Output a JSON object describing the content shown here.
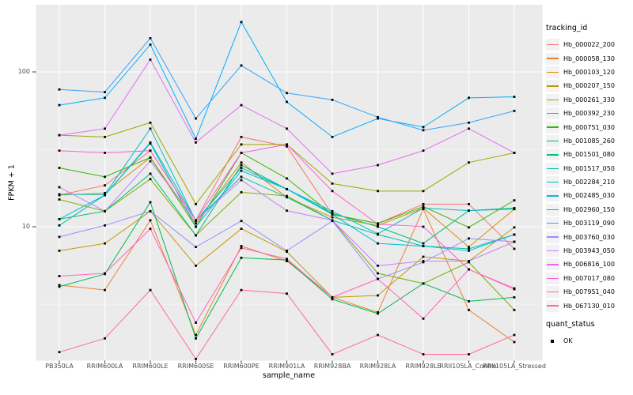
{
  "figure": {
    "panel_bg": "#EBEBEB",
    "grid_color": "#FFFFFF",
    "tick_color": "#333333",
    "tick_label_color": "#4D4D4D",
    "point_color": "#000000"
  },
  "chart_data": {
    "type": "line",
    "title": "",
    "xlabel": "sample_name",
    "ylabel": "FPKM + 1",
    "y_scale": "log10",
    "ylim": [
      1.35,
      280
    ],
    "grid": true,
    "legend_position": "right",
    "legend_title": "tracking_id",
    "quant_legend_title": "quant_status",
    "quant_status": {
      "label": "OK",
      "marker": "black-square"
    },
    "y_ticks": [
      {
        "label": "100",
        "value": 100
      },
      {
        "label": "10",
        "value": 10
      }
    ],
    "y_minor": [
      3.162,
      31.62
    ],
    "categories": [
      "PB350LA",
      "RRIM600LA",
      "RRIM600LE",
      "RRIM600SE",
      "RRIM600PE",
      "RRIM901LA",
      "RRIM928BA",
      "RRIM928LA",
      "RRIM928LE",
      "RRII105LA_Control",
      "RRII105LA_Stressed"
    ],
    "series": [
      {
        "name": "Hb_000022_200",
        "color": "#F8766D",
        "values": [
          16,
          18.5,
          31,
          11,
          38,
          33,
          12,
          10.5,
          14,
          14,
          7.2
        ]
      },
      {
        "name": "Hb_000058_130",
        "color": "#EA8331",
        "values": [
          4.2,
          3.9,
          11,
          2.0,
          7.5,
          6.0,
          3.5,
          2.8,
          13,
          2.9,
          1.8
        ]
      },
      {
        "name": "Hb_000103_120",
        "color": "#D89000",
        "values": [
          16,
          16.5,
          28,
          10.5,
          26,
          15.5,
          11.5,
          10.2,
          13.2,
          7.4,
          13
        ]
      },
      {
        "name": "Hb_000207_150",
        "color": "#C09B00",
        "values": [
          7.0,
          7.8,
          12.6,
          5.6,
          9.7,
          6.9,
          3.5,
          3.6,
          6.4,
          6.0,
          9.9
        ]
      },
      {
        "name": "Hb_000261_330",
        "color": "#A3A500",
        "values": [
          39,
          38,
          47,
          14,
          34,
          34,
          19,
          17,
          17,
          26,
          30
        ]
      },
      {
        "name": "Hb_000392_230",
        "color": "#7CAE00",
        "values": [
          15,
          12.6,
          20.3,
          8.8,
          16.7,
          15.8,
          11,
          5.0,
          4.3,
          5.9,
          2.9
        ]
      },
      {
        "name": "Hb_000751_030",
        "color": "#39B600",
        "values": [
          24,
          21,
          28,
          10,
          30,
          20.5,
          12,
          10.5,
          13.5,
          9.9,
          14.8
        ]
      },
      {
        "name": "Hb_001085_260",
        "color": "#00BB4E",
        "values": [
          4.1,
          4.95,
          14.4,
          1.9,
          6.3,
          6.1,
          3.4,
          2.75,
          4.3,
          3.3,
          3.5
        ]
      },
      {
        "name": "Hb_001501_080",
        "color": "#00BF7D",
        "values": [
          11.2,
          12.6,
          22,
          8.8,
          25,
          17.5,
          12.2,
          10.0,
          7.8,
          12.7,
          13.2
        ]
      },
      {
        "name": "Hb_001517_050",
        "color": "#00C1A3",
        "values": [
          10.2,
          16,
          35,
          11,
          21,
          15.5,
          11,
          8.9,
          7.5,
          7.2,
          8.9
        ]
      },
      {
        "name": "Hb_002284_210",
        "color": "#00BFC4",
        "values": [
          16.2,
          16.1,
          43,
          10.9,
          24,
          17.5,
          12.6,
          9.0,
          13.2,
          12.7,
          13
        ]
      },
      {
        "name": "Hb_002485_030",
        "color": "#00BAE0",
        "values": [
          11.2,
          16,
          34.5,
          10,
          23,
          17.5,
          12,
          7.8,
          7.5,
          7.0,
          8.9
        ]
      },
      {
        "name": "Hb_002960_150",
        "color": "#00B0F6",
        "values": [
          61,
          68,
          150,
          37,
          210,
          64,
          38,
          50,
          44,
          68,
          69
        ]
      },
      {
        "name": "Hb_003119_090",
        "color": "#35A2FF",
        "values": [
          77,
          74,
          165,
          50,
          110,
          73,
          66,
          51,
          42,
          47,
          56
        ]
      },
      {
        "name": "Hb_003760_030",
        "color": "#9590FF",
        "values": [
          8.6,
          10.2,
          12.6,
          7.4,
          10.9,
          7.0,
          10.9,
          4.6,
          5.9,
          8.4,
          8.0
        ]
      },
      {
        "name": "Hb_003943_050",
        "color": "#C77CFF",
        "values": [
          18,
          12.6,
          26.5,
          11,
          20,
          12.7,
          11,
          5.6,
          6.0,
          6.0,
          8.0
        ]
      },
      {
        "name": "Hb_006816_100",
        "color": "#E76BF3",
        "values": [
          39,
          43,
          120,
          35,
          61,
          43,
          22,
          25,
          31,
          43,
          30
        ]
      },
      {
        "name": "Hb_007017_080",
        "color": "#FA62DB",
        "values": [
          31,
          30,
          31,
          11,
          30,
          34,
          17,
          10.4,
          10,
          5.3,
          4.0
        ]
      },
      {
        "name": "Hb_007951_040",
        "color": "#FF62BC",
        "values": [
          4.8,
          5.0,
          9.7,
          2.4,
          7.3,
          6.2,
          3.5,
          4.6,
          2.55,
          5.3,
          3.95
        ]
      },
      {
        "name": "Hb_067130_010",
        "color": "#FF6A98",
        "values": [
          1.55,
          1.9,
          3.9,
          1.4,
          3.9,
          3.7,
          1.5,
          2.0,
          1.5,
          1.5,
          2.0
        ]
      }
    ]
  }
}
